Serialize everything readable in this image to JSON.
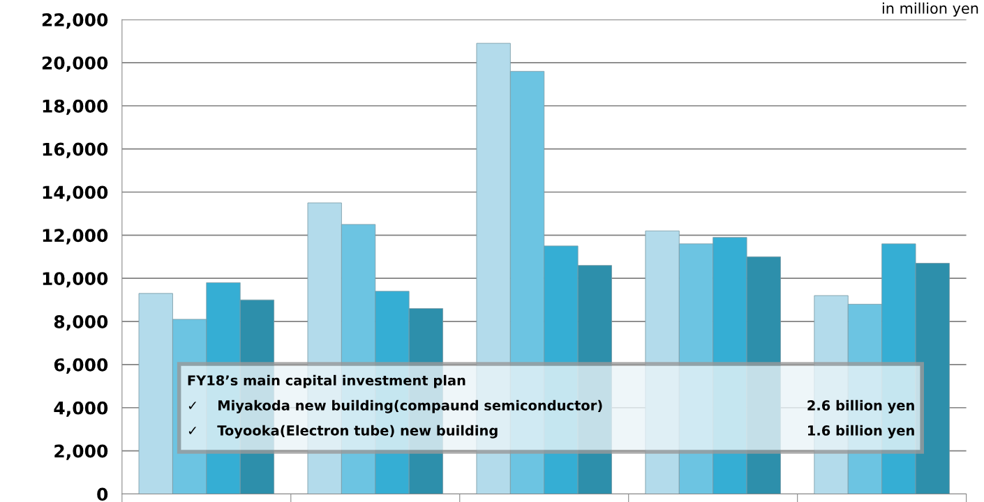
{
  "chart_data": {
    "type": "bar",
    "categories": [
      null,
      null,
      null,
      null,
      null
    ],
    "series": [
      {
        "color": "#b3dbeb",
        "values": [
          9300,
          13500,
          20900,
          12200,
          9200
        ]
      },
      {
        "color": "#6cc4e2",
        "values": [
          8100,
          12500,
          19600,
          11600,
          8800
        ]
      },
      {
        "color": "#35aed4",
        "values": [
          9800,
          9400,
          11500,
          11900,
          11600
        ]
      },
      {
        "color": "#2d8fab",
        "values": [
          9000,
          8600,
          10600,
          11000,
          10700
        ]
      }
    ],
    "ylim": [
      0,
      22000
    ],
    "yticks": [
      {
        "value": 0,
        "label": "0"
      },
      {
        "value": 2000,
        "label": "2,000"
      },
      {
        "value": 4000,
        "label": "4,000"
      },
      {
        "value": 6000,
        "label": "6,000"
      },
      {
        "value": 8000,
        "label": "8,000"
      },
      {
        "value": 10000,
        "label": "10,000"
      },
      {
        "value": 12000,
        "label": "12,000"
      },
      {
        "value": 14000,
        "label": "14,000"
      },
      {
        "value": 16000,
        "label": "16,000"
      },
      {
        "value": 18000,
        "label": "18,000"
      },
      {
        "value": 20000,
        "label": "20,000"
      },
      {
        "value": 22000,
        "label": "22,000"
      }
    ],
    "grid": "y",
    "legend": false,
    "annotations": [
      "in million yen",
      "FY18’s main capital investment plan",
      "✓    Miyakoda new building(compaund semiconductor)",
      "2.6 billion yen",
      "✓    Toyooka(Electron tube) new building",
      "1.6 billion yen"
    ]
  }
}
